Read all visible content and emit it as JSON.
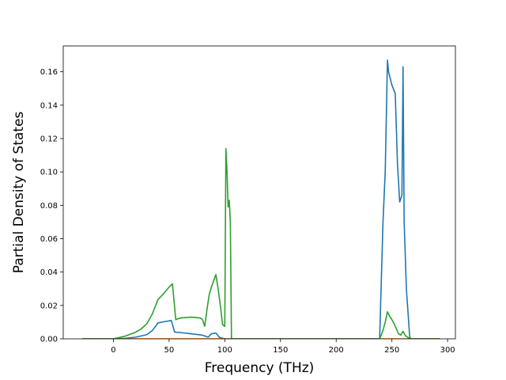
{
  "chart_data": {
    "type": "line",
    "title": "",
    "xlabel": "Frequency (THz)",
    "ylabel": "Partial Density of States",
    "xlim": [
      -45,
      307
    ],
    "ylim": [
      0,
      0.1755
    ],
    "x_ticks": [
      0,
      50,
      100,
      150,
      200,
      250,
      300
    ],
    "x_tick_labels": [
      "0",
      "50",
      "100",
      "150",
      "200",
      "250",
      "300"
    ],
    "y_ticks": [
      0.0,
      0.02,
      0.04,
      0.06,
      0.08,
      0.1,
      0.12,
      0.14,
      0.16
    ],
    "y_tick_labels": [
      "0.00",
      "0.02",
      "0.04",
      "0.06",
      "0.08",
      "0.10",
      "0.12",
      "0.14",
      "0.16"
    ],
    "grid": false,
    "legend": "none",
    "series": [
      {
        "color": "#1f77b4",
        "x": [
          -28,
          0,
          10,
          20,
          30,
          35,
          40,
          45,
          52,
          55,
          60,
          70,
          80,
          85,
          88,
          92,
          95,
          97,
          100,
          102,
          104,
          106,
          110,
          150,
          200,
          239,
          242,
          244,
          246,
          247,
          250,
          253,
          255,
          257,
          259,
          260,
          261,
          263,
          266,
          267,
          270,
          293
        ],
        "y": [
          0.0,
          0.0,
          0.0003,
          0.001,
          0.0025,
          0.005,
          0.0095,
          0.0102,
          0.011,
          0.004,
          0.0038,
          0.003,
          0.0022,
          0.001,
          0.003,
          0.0035,
          0.001,
          0.0005,
          0.0,
          0.0,
          0.0,
          0.0,
          0.0,
          0.0,
          0.0,
          0.0,
          0.07,
          0.1,
          0.167,
          0.16,
          0.152,
          0.147,
          0.105,
          0.082,
          0.086,
          0.163,
          0.07,
          0.03,
          0.001,
          0.0,
          0.0,
          0.0
        ]
      },
      {
        "color": "#ff7f0e",
        "x": [
          -28,
          0,
          50,
          100,
          150,
          200,
          250,
          293
        ],
        "y": [
          0.0,
          0.0,
          0.0,
          0.0,
          0.0,
          0.0,
          0.0,
          0.0
        ]
      },
      {
        "color": "#2ca02c",
        "x": [
          -28,
          0,
          10,
          20,
          25,
          30,
          35,
          38,
          40,
          45,
          50,
          53,
          56,
          60,
          70,
          78,
          80,
          82,
          84,
          86,
          88,
          92,
          94,
          96,
          98,
          100,
          101,
          102,
          103,
          104,
          105,
          106,
          107,
          110,
          150,
          200,
          239,
          242,
          244,
          246,
          248,
          250,
          252,
          254,
          256,
          258,
          260,
          262,
          264,
          266,
          270,
          293
        ],
        "y": [
          0.0,
          0.0,
          0.0015,
          0.004,
          0.006,
          0.009,
          0.015,
          0.02,
          0.0235,
          0.027,
          0.031,
          0.033,
          0.0115,
          0.0125,
          0.013,
          0.0125,
          0.0115,
          0.0075,
          0.0175,
          0.0265,
          0.031,
          0.0385,
          0.03,
          0.02,
          0.0085,
          0.0075,
          0.114,
          0.1,
          0.079,
          0.083,
          0.07,
          0.0,
          0.0,
          0.0,
          0.0,
          0.0,
          0.0,
          0.005,
          0.01,
          0.0162,
          0.0135,
          0.0115,
          0.009,
          0.006,
          0.003,
          0.0022,
          0.0045,
          0.002,
          0.001,
          0.0,
          0.0,
          0.0
        ]
      }
    ]
  }
}
